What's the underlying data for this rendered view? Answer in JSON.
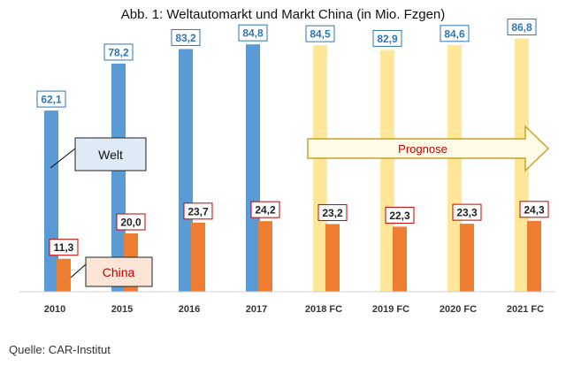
{
  "chart_data": {
    "type": "bar",
    "title": "Abb. 1: Weltautomarkt und Markt China (in Mio. Fzgen)",
    "categories": [
      "2010",
      "2015",
      "2016",
      "2017",
      "2018 FC",
      "2019 FC",
      "2020 FC",
      "2021 FC"
    ],
    "series": [
      {
        "name": "Welt",
        "values": [
          62.1,
          78.2,
          83.2,
          84.8,
          84.5,
          82.9,
          84.6,
          86.8
        ],
        "labels": [
          "62,1",
          "78,2",
          "83,2",
          "84,8",
          "84,5",
          "82,9",
          "84,6",
          "86,8"
        ]
      },
      {
        "name": "China",
        "values": [
          11.3,
          20.0,
          23.7,
          24.2,
          23.2,
          22.3,
          23.3,
          24.3
        ],
        "labels": [
          "11,3",
          "20,0",
          "23,7",
          "24,2",
          "23,2",
          "22,3",
          "23,3",
          "24,3"
        ]
      }
    ],
    "forecast_from_category": "2018 FC",
    "annotation": "Prognose",
    "ylim": [
      0,
      100
    ],
    "grid": false,
    "colors": {
      "welt": "#5b9bd5",
      "welt_forecast": "#ffe699",
      "china": "#ed7d31",
      "welt_label_border": "#2e75b6",
      "china_label_border": "#c00000",
      "welt_legend_bg": "#deebf7",
      "china_legend_bg": "#fbe5d6",
      "arrow_fill": "#fffbe6",
      "arrow_stroke": "#c9a227",
      "prognose_text": "#c00000"
    }
  },
  "source": "Quelle: CAR-Institut"
}
